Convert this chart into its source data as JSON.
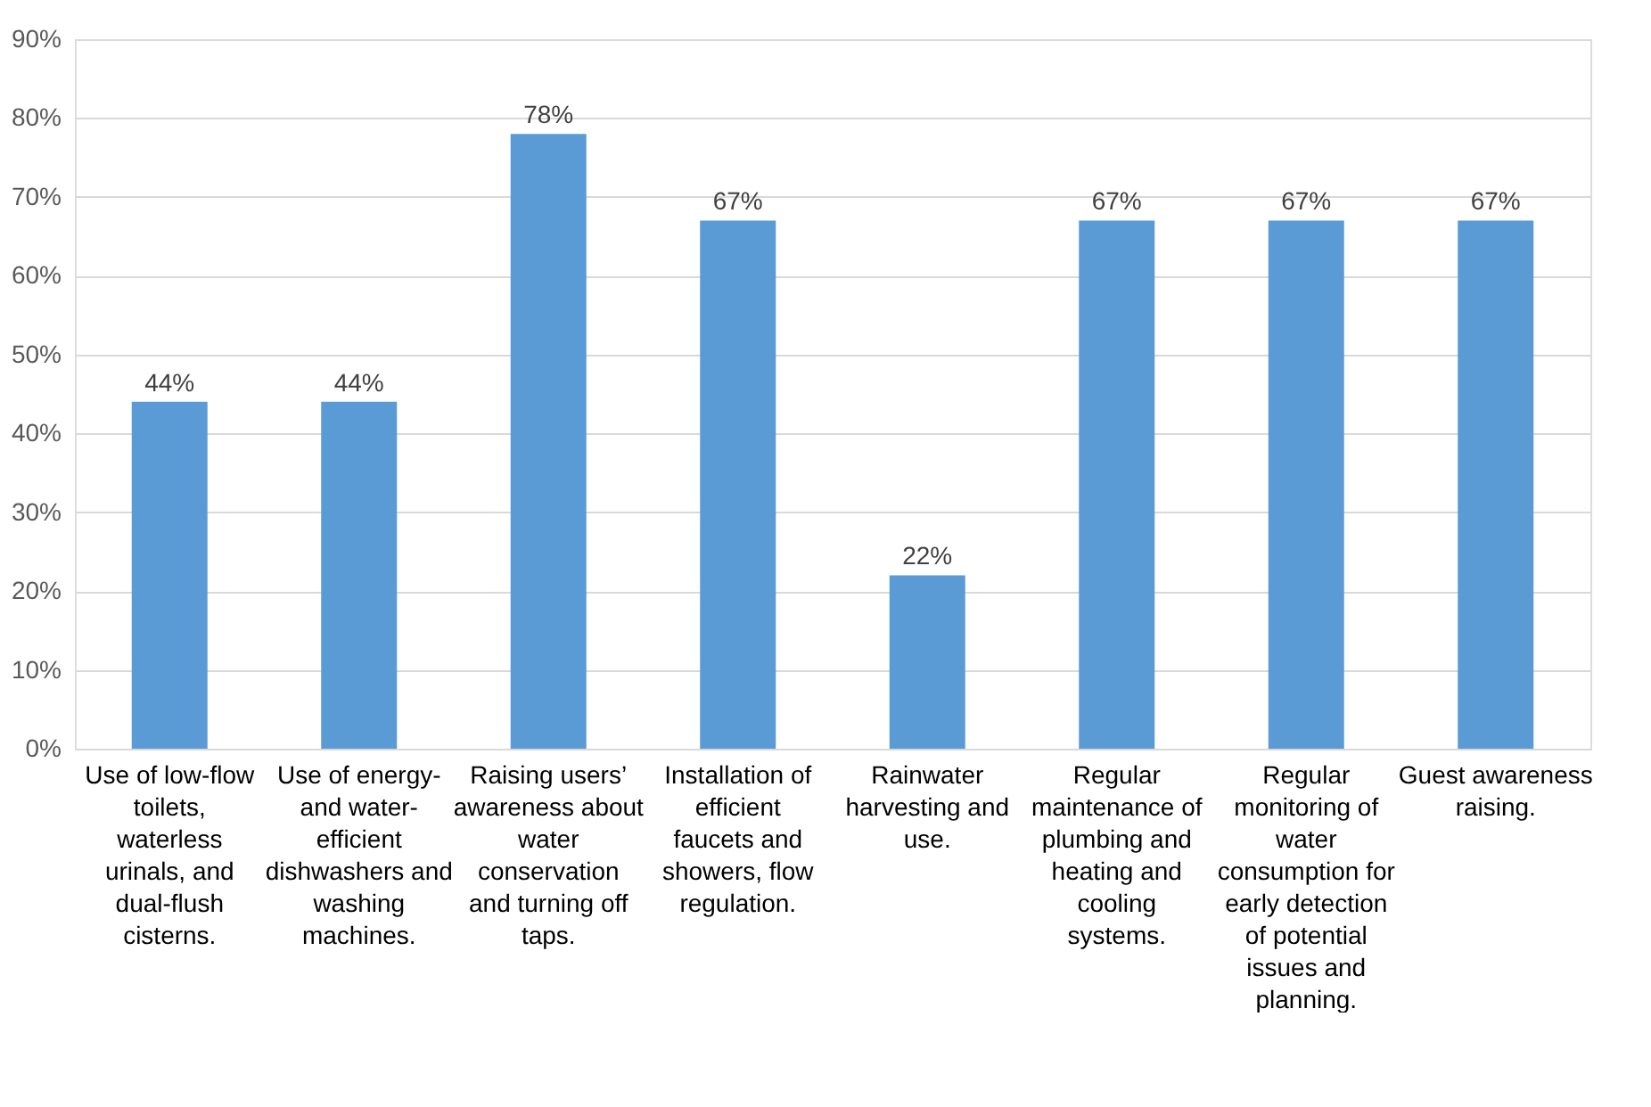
{
  "chart_data": {
    "type": "bar",
    "categories": [
      "Use of low-flow toilets, waterless urinals, and dual-flush cisterns.",
      "Use of energy- and water-efficient dishwashers and washing machines.",
      "Raising users’ awareness about water conservation and turning off taps.",
      "Installation of efficient faucets and showers, flow regulation.",
      "Rainwater harvesting and use.",
      "Regular maintenance of plumbing and heating and cooling systems.",
      "Regular monitoring of water consumption for early detection of potential issues and planning.",
      "Guest awareness raising."
    ],
    "values": [
      44,
      44,
      78,
      67,
      22,
      67,
      67,
      67
    ],
    "value_labels": [
      "44%",
      "44%",
      "78%",
      "67%",
      "22%",
      "67%",
      "67%",
      "67%"
    ],
    "color": "#5b9bd5",
    "ylim": [
      0,
      90
    ],
    "yticks": [
      {
        "value": 0,
        "label": "0%"
      },
      {
        "value": 10,
        "label": "10%"
      },
      {
        "value": 20,
        "label": "20%"
      },
      {
        "value": 30,
        "label": "30%"
      },
      {
        "value": 40,
        "label": "40%"
      },
      {
        "value": 50,
        "label": "50%"
      },
      {
        "value": 60,
        "label": "60%"
      },
      {
        "value": 70,
        "label": "70%"
      },
      {
        "value": 80,
        "label": "80%"
      },
      {
        "value": 90,
        "label": "90%"
      }
    ],
    "grid": "y"
  }
}
